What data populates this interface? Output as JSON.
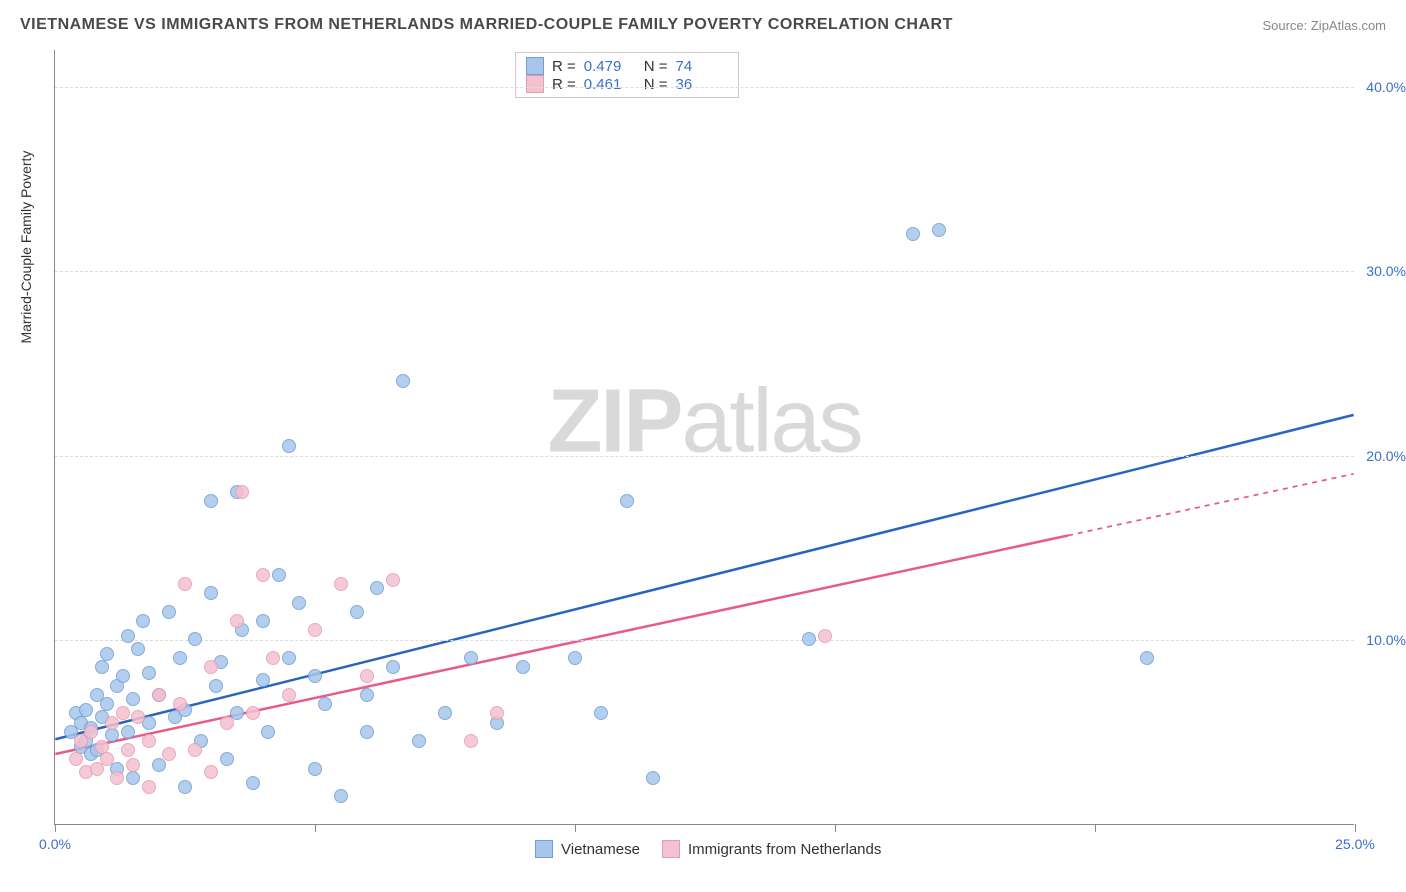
{
  "title": "VIETNAMESE VS IMMIGRANTS FROM NETHERLANDS MARRIED-COUPLE FAMILY POVERTY CORRELATION CHART",
  "source_label": "Source: ZipAtlas.com",
  "yaxis_title": "Married-Couple Family Poverty",
  "watermark": {
    "prefix": "ZIP",
    "suffix": "atlas"
  },
  "chart": {
    "type": "scatter",
    "xlim": [
      0,
      25
    ],
    "ylim": [
      0,
      42
    ],
    "x_ticks": [
      0,
      5,
      10,
      15,
      20,
      25
    ],
    "x_tick_labels": [
      "0.0%",
      "",
      "",
      "",
      "",
      "25.0%"
    ],
    "y_gridlines": [
      10,
      20,
      30,
      40
    ],
    "y_tick_labels": [
      "10.0%",
      "20.0%",
      "30.0%",
      "40.0%"
    ],
    "background_color": "#ffffff",
    "grid_color": "#dddddd",
    "axis_color": "#888888",
    "tick_label_color": "#3a6fc9",
    "marker_radius": 7,
    "marker_border_width": 1.4,
    "marker_fill_opacity": 0.35
  },
  "series": [
    {
      "name": "Vietnamese",
      "color_border": "#6f9fd8",
      "color_fill": "#a8c6ec",
      "trend_color": "#2a63c0",
      "trend_width": 2.5,
      "trend": {
        "x1": 0,
        "y1": 4.6,
        "x2": 25,
        "y2": 22.2
      },
      "trend_dash_after_x": null,
      "r": "0.479",
      "n": "74",
      "points": [
        [
          0.3,
          5.0
        ],
        [
          0.4,
          6.0
        ],
        [
          0.5,
          4.2
        ],
        [
          0.5,
          5.5
        ],
        [
          0.6,
          4.5
        ],
        [
          0.6,
          6.2
        ],
        [
          0.7,
          3.8
        ],
        [
          0.7,
          5.2
        ],
        [
          0.8,
          7.0
        ],
        [
          0.8,
          4.0
        ],
        [
          0.9,
          5.8
        ],
        [
          0.9,
          8.5
        ],
        [
          1.0,
          6.5
        ],
        [
          1.0,
          9.2
        ],
        [
          1.1,
          4.8
        ],
        [
          1.2,
          7.5
        ],
        [
          1.2,
          3.0
        ],
        [
          1.3,
          8.0
        ],
        [
          1.4,
          5.0
        ],
        [
          1.4,
          10.2
        ],
        [
          1.5,
          6.8
        ],
        [
          1.5,
          2.5
        ],
        [
          1.6,
          9.5
        ],
        [
          1.7,
          11.0
        ],
        [
          1.8,
          5.5
        ],
        [
          1.8,
          8.2
        ],
        [
          2.0,
          7.0
        ],
        [
          2.0,
          3.2
        ],
        [
          2.2,
          11.5
        ],
        [
          2.3,
          5.8
        ],
        [
          2.4,
          9.0
        ],
        [
          2.5,
          6.2
        ],
        [
          2.5,
          2.0
        ],
        [
          2.7,
          10.0
        ],
        [
          2.8,
          4.5
        ],
        [
          3.0,
          12.5
        ],
        [
          3.0,
          17.5
        ],
        [
          3.1,
          7.5
        ],
        [
          3.2,
          8.8
        ],
        [
          3.3,
          3.5
        ],
        [
          3.5,
          18.0
        ],
        [
          3.5,
          6.0
        ],
        [
          3.6,
          10.5
        ],
        [
          3.8,
          2.2
        ],
        [
          4.0,
          11.0
        ],
        [
          4.0,
          7.8
        ],
        [
          4.1,
          5.0
        ],
        [
          4.3,
          13.5
        ],
        [
          4.5,
          20.5
        ],
        [
          4.5,
          9.0
        ],
        [
          4.7,
          12.0
        ],
        [
          5.0,
          8.0
        ],
        [
          5.0,
          3.0
        ],
        [
          5.2,
          6.5
        ],
        [
          5.5,
          1.5
        ],
        [
          5.8,
          11.5
        ],
        [
          6.0,
          7.0
        ],
        [
          6.0,
          5.0
        ],
        [
          6.2,
          12.8
        ],
        [
          6.5,
          8.5
        ],
        [
          6.7,
          24.0
        ],
        [
          7.0,
          4.5
        ],
        [
          7.5,
          6.0
        ],
        [
          8.0,
          9.0
        ],
        [
          8.5,
          5.5
        ],
        [
          9.0,
          8.5
        ],
        [
          10.0,
          9.0
        ],
        [
          10.5,
          6.0
        ],
        [
          11.0,
          17.5
        ],
        [
          11.5,
          2.5
        ],
        [
          16.5,
          32.0
        ],
        [
          17.0,
          32.2
        ],
        [
          21.0,
          9.0
        ],
        [
          14.5,
          10.0
        ]
      ]
    },
    {
      "name": "Immigrants from Netherlands",
      "color_border": "#e89bb0",
      "color_fill": "#f4c1cf",
      "trend_color": "#e75a8a",
      "trend_width": 2.5,
      "trend": {
        "x1": 0,
        "y1": 3.8,
        "x2": 25,
        "y2": 19.0
      },
      "trend_dash_after_x": 19.5,
      "r": "0.461",
      "n": "36",
      "points": [
        [
          0.4,
          3.5
        ],
        [
          0.5,
          4.5
        ],
        [
          0.6,
          2.8
        ],
        [
          0.7,
          5.0
        ],
        [
          0.8,
          3.0
        ],
        [
          0.9,
          4.2
        ],
        [
          1.0,
          3.5
        ],
        [
          1.1,
          5.5
        ],
        [
          1.2,
          2.5
        ],
        [
          1.3,
          6.0
        ],
        [
          1.4,
          4.0
        ],
        [
          1.5,
          3.2
        ],
        [
          1.6,
          5.8
        ],
        [
          1.8,
          4.5
        ],
        [
          1.8,
          2.0
        ],
        [
          2.0,
          7.0
        ],
        [
          2.2,
          3.8
        ],
        [
          2.4,
          6.5
        ],
        [
          2.5,
          13.0
        ],
        [
          2.7,
          4.0
        ],
        [
          3.0,
          8.5
        ],
        [
          3.0,
          2.8
        ],
        [
          3.3,
          5.5
        ],
        [
          3.5,
          11.0
        ],
        [
          3.6,
          18.0
        ],
        [
          3.8,
          6.0
        ],
        [
          4.0,
          13.5
        ],
        [
          4.2,
          9.0
        ],
        [
          4.5,
          7.0
        ],
        [
          5.0,
          10.5
        ],
        [
          5.5,
          13.0
        ],
        [
          6.0,
          8.0
        ],
        [
          6.5,
          13.2
        ],
        [
          8.0,
          4.5
        ],
        [
          8.5,
          6.0
        ],
        [
          14.8,
          10.2
        ]
      ]
    }
  ],
  "legend_top": {
    "r_label": "R =",
    "n_label": "N ="
  },
  "legend_bottom": [
    {
      "label": "Vietnamese",
      "series": 0
    },
    {
      "label": "Immigrants from Netherlands",
      "series": 1
    }
  ]
}
